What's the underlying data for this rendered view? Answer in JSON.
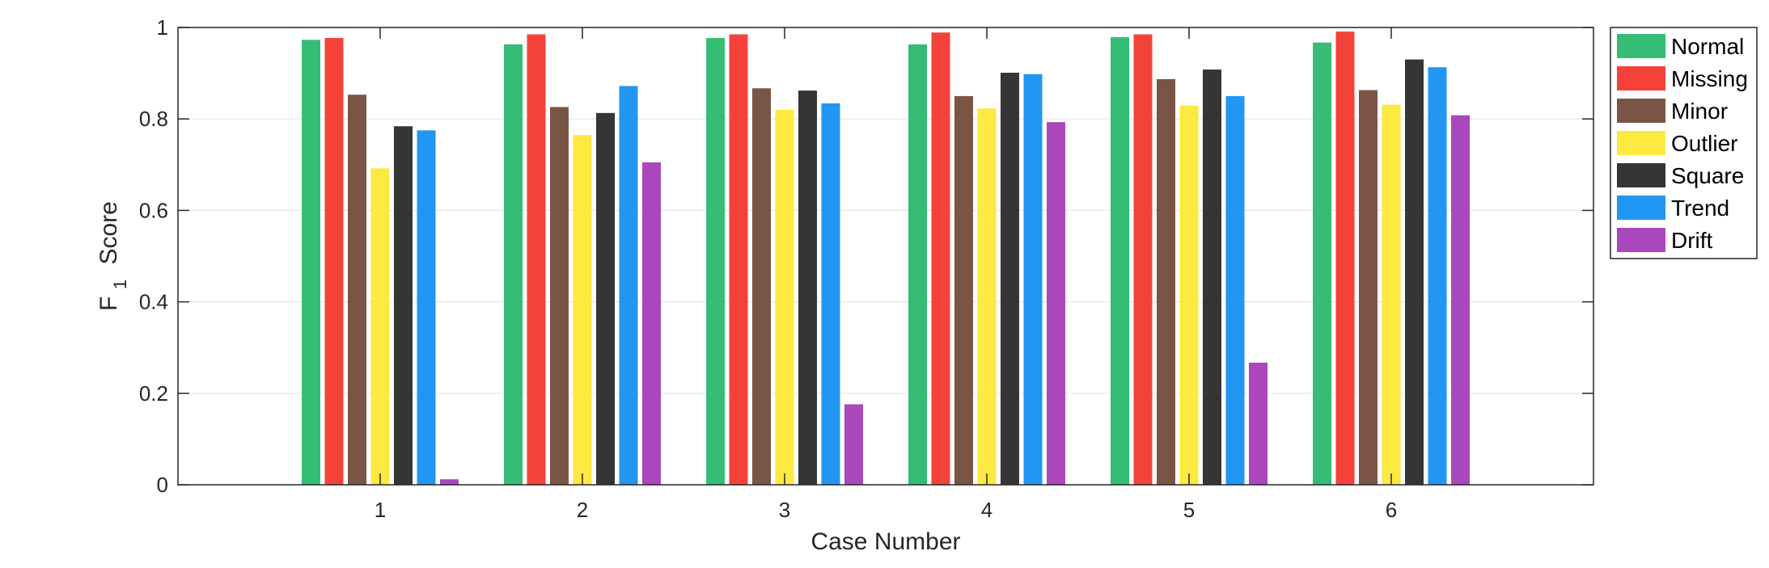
{
  "chart_data": {
    "type": "bar",
    "title": "",
    "xlabel": "Case Number",
    "ylabel_main": "F",
    "ylabel_sub": "1",
    "ylabel_tail": "Score",
    "categories": [
      "1",
      "2",
      "3",
      "4",
      "5",
      "6"
    ],
    "ylim": [
      0,
      1
    ],
    "yticks": [
      "0",
      "0.2",
      "0.4",
      "0.6",
      "0.8",
      "1"
    ],
    "grid": "horizontal",
    "legend_position": "outside-right",
    "series": [
      {
        "name": "Normal",
        "color": "#35bd75",
        "values": [
          0.973,
          0.963,
          0.977,
          0.963,
          0.979,
          0.967
        ]
      },
      {
        "name": "Missing",
        "color": "#f4423a",
        "values": [
          0.977,
          0.985,
          0.985,
          0.989,
          0.985,
          0.991
        ]
      },
      {
        "name": "Minor",
        "color": "#7a5546",
        "values": [
          0.853,
          0.826,
          0.867,
          0.85,
          0.887,
          0.863
        ]
      },
      {
        "name": "Outlier",
        "color": "#fde93f",
        "values": [
          0.692,
          0.765,
          0.82,
          0.823,
          0.829,
          0.831
        ]
      },
      {
        "name": "Square",
        "color": "#353535",
        "values": [
          0.784,
          0.813,
          0.862,
          0.901,
          0.908,
          0.93
        ]
      },
      {
        "name": "Trend",
        "color": "#2196f2",
        "values": [
          0.775,
          0.872,
          0.834,
          0.898,
          0.85,
          0.913
        ]
      },
      {
        "name": "Drift",
        "color": "#aa47bc",
        "values": [
          0.012,
          0.705,
          0.176,
          0.793,
          0.267,
          0.808
        ]
      }
    ]
  }
}
